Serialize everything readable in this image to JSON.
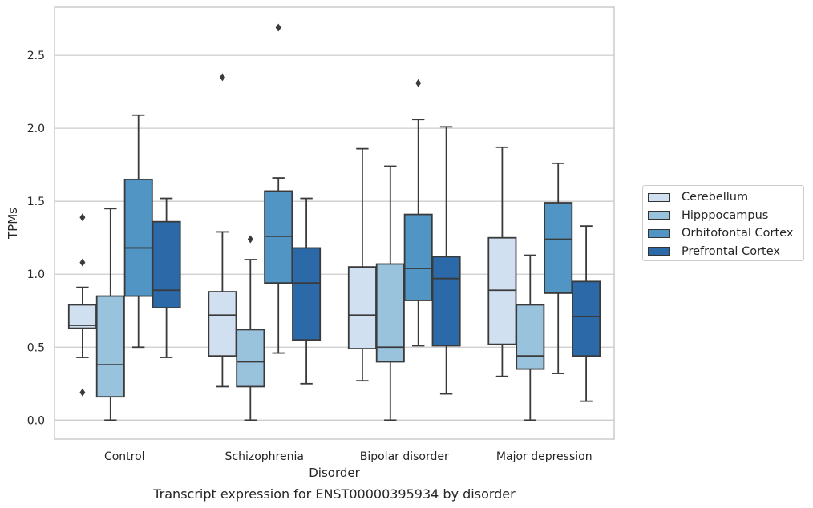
{
  "chart_data": {
    "type": "box",
    "caption": "Transcript expression for ENST00000395934 by disorder",
    "xlabel": "Disorder",
    "ylabel": "TPMs",
    "ylim": [
      -0.13,
      2.83
    ],
    "yticks": [
      "0.0",
      "0.5",
      "1.0",
      "1.5",
      "2.0",
      "2.5"
    ],
    "grid": "horizontal",
    "legend_position": "right",
    "categories": [
      "Control",
      "Schizophrenia",
      "Bipolar disorder",
      "Major depression"
    ],
    "series": [
      {
        "name": "Cerebellum",
        "color": "#d0e0f0",
        "boxes": [
          {
            "whisker_low": 0.43,
            "q1": 0.63,
            "median": 0.65,
            "q3": 0.79,
            "whisker_high": 0.91,
            "outliers": [
              1.39,
              1.08,
              0.19
            ]
          },
          {
            "whisker_low": 0.23,
            "q1": 0.44,
            "median": 0.72,
            "q3": 0.88,
            "whisker_high": 1.29,
            "outliers": [
              2.35
            ]
          },
          {
            "whisker_low": 0.27,
            "q1": 0.49,
            "median": 0.72,
            "q3": 1.05,
            "whisker_high": 1.86,
            "outliers": []
          },
          {
            "whisker_low": 0.3,
            "q1": 0.52,
            "median": 0.89,
            "q3": 1.25,
            "whisker_high": 1.87,
            "outliers": []
          }
        ]
      },
      {
        "name": "Hipppocampus",
        "color": "#99c3dd",
        "boxes": [
          {
            "whisker_low": 0.0,
            "q1": 0.16,
            "median": 0.38,
            "q3": 0.85,
            "whisker_high": 1.45,
            "outliers": []
          },
          {
            "whisker_low": 0.0,
            "q1": 0.23,
            "median": 0.4,
            "q3": 0.62,
            "whisker_high": 1.1,
            "outliers": [
              1.24
            ]
          },
          {
            "whisker_low": 0.0,
            "q1": 0.4,
            "median": 0.5,
            "q3": 1.07,
            "whisker_high": 1.74,
            "outliers": []
          },
          {
            "whisker_low": 0.0,
            "q1": 0.35,
            "median": 0.44,
            "q3": 0.79,
            "whisker_high": 1.13,
            "outliers": []
          }
        ]
      },
      {
        "name": "Orbitofontal Cortex",
        "color": "#5195c5",
        "boxes": [
          {
            "whisker_low": 0.5,
            "q1": 0.85,
            "median": 1.18,
            "q3": 1.65,
            "whisker_high": 2.09,
            "outliers": []
          },
          {
            "whisker_low": 0.46,
            "q1": 0.94,
            "median": 1.26,
            "q3": 1.57,
            "whisker_high": 1.66,
            "outliers": [
              2.69
            ]
          },
          {
            "whisker_low": 0.51,
            "q1": 0.82,
            "median": 1.04,
            "q3": 1.41,
            "whisker_high": 2.06,
            "outliers": [
              2.31
            ]
          },
          {
            "whisker_low": 0.32,
            "q1": 0.87,
            "median": 1.24,
            "q3": 1.49,
            "whisker_high": 1.76,
            "outliers": []
          }
        ]
      },
      {
        "name": "Prefrontal Cortex",
        "color": "#2b69a8",
        "boxes": [
          {
            "whisker_low": 0.43,
            "q1": 0.77,
            "median": 0.89,
            "q3": 1.36,
            "whisker_high": 1.52,
            "outliers": []
          },
          {
            "whisker_low": 0.25,
            "q1": 0.55,
            "median": 0.94,
            "q3": 1.18,
            "whisker_high": 1.52,
            "outliers": []
          },
          {
            "whisker_low": 0.18,
            "q1": 0.51,
            "median": 0.97,
            "q3": 1.12,
            "whisker_high": 2.01,
            "outliers": []
          },
          {
            "whisker_low": 0.13,
            "q1": 0.44,
            "median": 0.71,
            "q3": 0.95,
            "whisker_high": 1.33,
            "outliers": []
          }
        ]
      }
    ]
  }
}
